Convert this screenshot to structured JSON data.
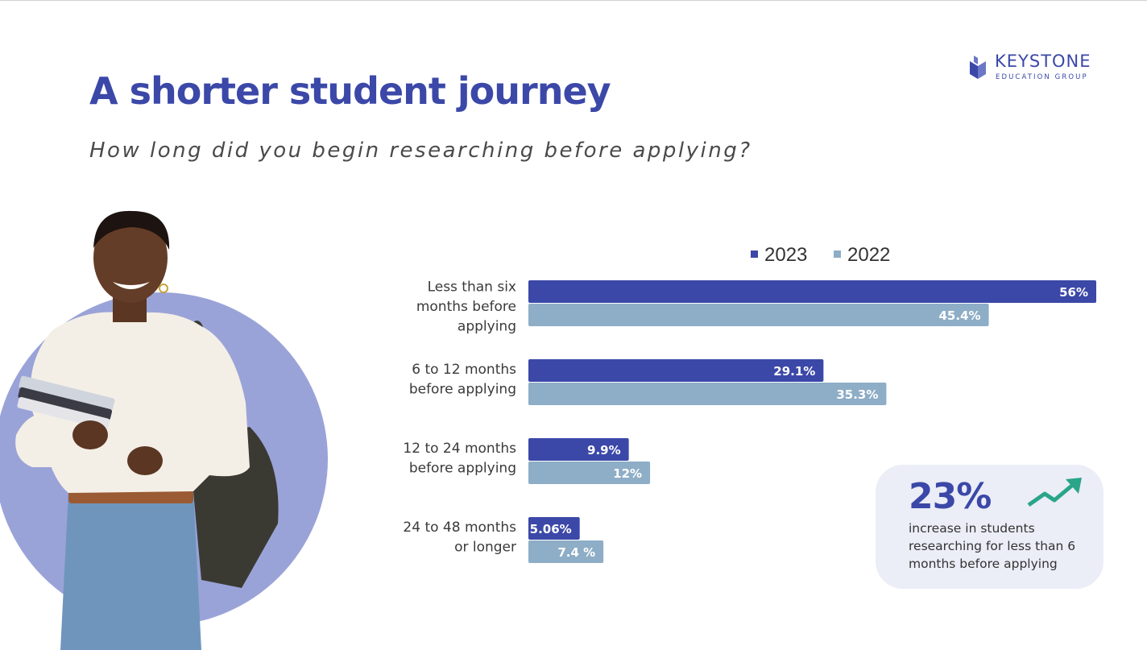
{
  "header": {
    "title": "A shorter student journey",
    "subtitle": "How long did you begin researching before applying?"
  },
  "logo": {
    "name": "KEYSTONE",
    "tagline": "EDUCATION GROUP"
  },
  "colors": {
    "accent": "#3b48a8",
    "series_2023": "#3b48a8",
    "series_2022": "#8eadc6",
    "circle": "#9aa3d8",
    "callout_bg": "#ebedf7",
    "trend_arrow": "#2aa58a"
  },
  "callout": {
    "value": "23%",
    "text": "increase in students researching for less than 6 months before applying",
    "icon": "trend-up-arrow-icon"
  },
  "photo": {
    "icon": "student-photo-illustration"
  },
  "chart_data": {
    "type": "bar",
    "orientation": "horizontal",
    "categories": [
      [
        "Less than six",
        "months before",
        "applying"
      ],
      [
        "6 to 12 months",
        "before applying"
      ],
      [
        "12 to 24 months",
        "before applying"
      ],
      [
        "24 to 48 months",
        "or longer"
      ]
    ],
    "series": [
      {
        "name": "2023",
        "values": [
          56,
          29.1,
          9.9,
          5.06
        ],
        "labels": [
          "56%",
          "29.1%",
          "9.9%",
          "5.06%"
        ]
      },
      {
        "name": "2022",
        "values": [
          45.4,
          35.3,
          12,
          7.4
        ],
        "labels": [
          "45.4%",
          "35.3%",
          "12%",
          "7.4 %"
        ]
      }
    ],
    "xlim": [
      0,
      56
    ],
    "legend_position": "top-right",
    "grid": false
  }
}
